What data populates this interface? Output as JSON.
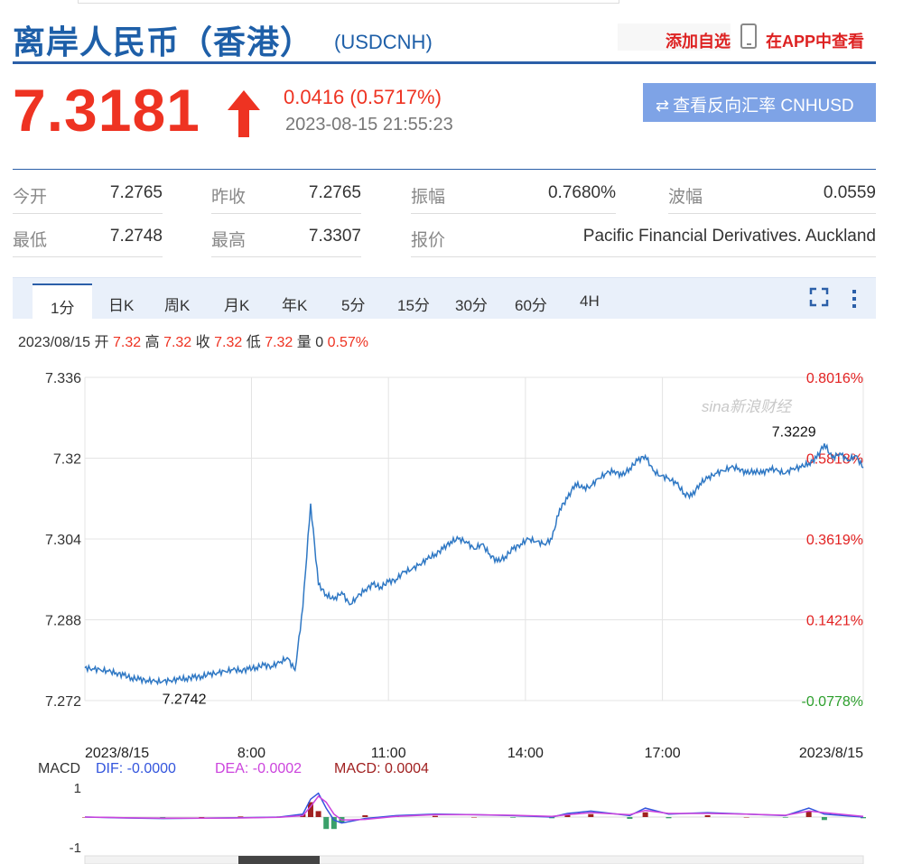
{
  "header": {
    "title": "离岸人民币（香港）",
    "code": "(USDCNH)",
    "add_watchlist": "添加自选",
    "view_in_app": "在APP中查看"
  },
  "price": {
    "last": "7.3181",
    "change": "0.0416 (0.5717%)",
    "timestamp": "2023-08-15 21:55:23",
    "reverse_button": "查看反向汇率 CNHUSD"
  },
  "quote": {
    "open_label": "今开",
    "open": "7.2765",
    "prev_close_label": "昨收",
    "prev_close": "7.2765",
    "amplitude_label": "振幅",
    "amplitude": "0.7680%",
    "range_label": "波幅",
    "range": "0.0559",
    "low_label": "最低",
    "low": "7.2748",
    "high_label": "最高",
    "high": "7.3307",
    "quoter_label": "报价",
    "quoter": "Pacific Financial Derivatives. Auckland"
  },
  "tabs": [
    "1分",
    "日K",
    "周K",
    "月K",
    "年K",
    "5分",
    "15分",
    "30分",
    "60分",
    "4H"
  ],
  "ohlc": {
    "date": "2023/08/15",
    "open_label": "开",
    "open": "7.32",
    "high_label": "高",
    "high": "7.32",
    "close_label": "收",
    "close": "7.32",
    "low_label": "低",
    "low": "7.32",
    "volume_label": "量",
    "volume": "0",
    "change_pct": "0.57%"
  },
  "watermark": "sina新浪财经",
  "colors": {
    "up": "#e32222",
    "down": "#2ea02e",
    "line": "#2f78c4",
    "dif": "#3355dd",
    "dea": "#cc44dd",
    "macd": "#a02020"
  },
  "chart_data": [
    {
      "type": "line",
      "x_ticks": [
        "2023/8/15",
        "8:00",
        "11:00",
        "14:00",
        "17:00",
        "2023/8/15"
      ],
      "y_ticks": [
        "7.336",
        "7.32",
        "7.304",
        "7.288",
        "7.272"
      ],
      "y_pct_ticks": [
        "0.8016%",
        "0.5818%",
        "0.3619%",
        "0.1421%",
        "-0.0778%"
      ],
      "ylim": [
        7.272,
        7.336
      ],
      "grid": true,
      "annotations": [
        {
          "text": "7.3229",
          "x": 0.93,
          "y": 7.3229
        },
        {
          "text": "7.2742",
          "x": 0.13,
          "y": 7.2742
        }
      ],
      "series": [
        {
          "x": [
            0,
            0.01,
            0.02,
            0.03,
            0.04,
            0.05,
            0.06,
            0.07,
            0.08,
            0.09,
            0.1,
            0.11,
            0.12,
            0.13,
            0.14,
            0.15,
            0.16,
            0.17,
            0.18,
            0.19,
            0.2,
            0.21,
            0.22,
            0.23,
            0.24,
            0.25,
            0.26,
            0.27,
            0.28,
            0.29,
            0.3,
            0.31,
            0.32,
            0.33,
            0.34,
            0.35,
            0.36,
            0.37,
            0.38,
            0.39,
            0.4,
            0.41,
            0.42,
            0.43,
            0.44,
            0.45,
            0.46,
            0.47,
            0.48,
            0.49,
            0.5,
            0.51,
            0.52,
            0.53,
            0.54,
            0.55,
            0.56,
            0.57,
            0.58,
            0.59,
            0.6,
            0.61,
            0.62,
            0.63,
            0.64,
            0.65,
            0.66,
            0.67,
            0.68,
            0.69,
            0.7,
            0.71,
            0.72,
            0.73,
            0.74,
            0.75,
            0.76,
            0.77,
            0.78,
            0.79,
            0.8,
            0.81,
            0.82,
            0.83,
            0.84,
            0.85,
            0.86,
            0.87,
            0.88,
            0.89,
            0.9,
            0.91,
            0.92,
            0.93,
            0.94,
            0.95,
            0.96,
            0.97,
            0.98,
            0.99,
            1
          ],
          "values": [
            7.2785,
            7.2783,
            7.2781,
            7.2778,
            7.2775,
            7.277,
            7.2765,
            7.2762,
            7.276,
            7.2758,
            7.2758,
            7.276,
            7.2762,
            7.2764,
            7.2766,
            7.2768,
            7.2772,
            7.2775,
            7.2778,
            7.2781,
            7.278,
            7.2782,
            7.2786,
            7.279,
            7.2788,
            7.2795,
            7.2805,
            7.278,
            7.2905,
            7.311,
            7.295,
            7.293,
            7.292,
            7.2935,
            7.291,
            7.2925,
            7.294,
            7.295,
            7.2945,
            7.2955,
            7.296,
            7.2975,
            7.298,
            7.299,
            7.3,
            7.301,
            7.302,
            7.3035,
            7.304,
            7.3035,
            7.302,
            7.303,
            7.301,
            7.2995,
            7.3005,
            7.302,
            7.303,
            7.304,
            7.3035,
            7.303,
            7.304,
            7.31,
            7.312,
            7.315,
            7.314,
            7.3145,
            7.316,
            7.317,
            7.3175,
            7.3165,
            7.318,
            7.3195,
            7.3205,
            7.3175,
            7.3165,
            7.316,
            7.315,
            7.313,
            7.3125,
            7.315,
            7.316,
            7.317,
            7.3175,
            7.3182,
            7.318,
            7.317,
            7.3175,
            7.317,
            7.318,
            7.3175,
            7.317,
            7.318,
            7.3182,
            7.319,
            7.32,
            7.3229,
            7.32,
            7.321,
            7.3195,
            7.3205,
            7.3181
          ]
        }
      ]
    },
    {
      "type": "line",
      "title": "MACD",
      "legend": [
        {
          "name": "DIF",
          "value": "-0.0000"
        },
        {
          "name": "DEA",
          "value": "-0.0002"
        },
        {
          "name": "MACD",
          "value": "0.0004"
        }
      ],
      "y_ticks": [
        "1",
        "-1"
      ],
      "ylim": [
        -1,
        1
      ],
      "series": [
        {
          "name": "DIF",
          "x": [
            0,
            0.05,
            0.1,
            0.15,
            0.2,
            0.25,
            0.28,
            0.29,
            0.3,
            0.31,
            0.32,
            0.33,
            0.36,
            0.4,
            0.45,
            0.5,
            0.55,
            0.6,
            0.62,
            0.65,
            0.7,
            0.72,
            0.75,
            0.8,
            0.85,
            0.9,
            0.93,
            0.95,
            1
          ],
          "values": [
            0,
            -0.03,
            -0.05,
            -0.04,
            -0.02,
            0,
            0.1,
            0.6,
            0.8,
            0.3,
            -0.1,
            -0.2,
            -0.05,
            0.05,
            0.1,
            0.08,
            0.05,
            0,
            0.12,
            0.2,
            0.05,
            0.3,
            0.1,
            0.15,
            0.1,
            0.05,
            0.3,
            0.1,
            0
          ]
        },
        {
          "name": "DEA",
          "x": [
            0,
            0.05,
            0.1,
            0.15,
            0.2,
            0.25,
            0.28,
            0.29,
            0.3,
            0.31,
            0.32,
            0.33,
            0.36,
            0.4,
            0.45,
            0.5,
            0.55,
            0.6,
            0.62,
            0.65,
            0.7,
            0.72,
            0.75,
            0.8,
            0.85,
            0.9,
            0.93,
            0.95,
            1
          ],
          "values": [
            0,
            -0.02,
            -0.04,
            -0.04,
            -0.03,
            -0.01,
            0.05,
            0.35,
            0.7,
            0.5,
            0.1,
            -0.1,
            -0.08,
            0.02,
            0.08,
            0.08,
            0.06,
            0.02,
            0.08,
            0.15,
            0.08,
            0.22,
            0.12,
            0.12,
            0.1,
            0.06,
            0.2,
            0.15,
            0.02
          ]
        },
        {
          "name": "MACD",
          "x": [
            0,
            0.05,
            0.1,
            0.15,
            0.2,
            0.25,
            0.28,
            0.29,
            0.3,
            0.31,
            0.32,
            0.33,
            0.36,
            0.4,
            0.45,
            0.5,
            0.55,
            0.6,
            0.62,
            0.65,
            0.7,
            0.72,
            0.75,
            0.8,
            0.85,
            0.9,
            0.93,
            0.95,
            1
          ],
          "values": [
            0,
            -0.02,
            -0.03,
            0,
            0.02,
            0.02,
            0.1,
            0.5,
            0.2,
            -0.4,
            -0.4,
            -0.2,
            0.06,
            0.06,
            0.04,
            0,
            -0.02,
            -0.04,
            0.08,
            0.1,
            -0.06,
            0.16,
            -0.04,
            0.06,
            0,
            -0.02,
            0.2,
            -0.1,
            -0.04
          ]
        }
      ]
    }
  ]
}
